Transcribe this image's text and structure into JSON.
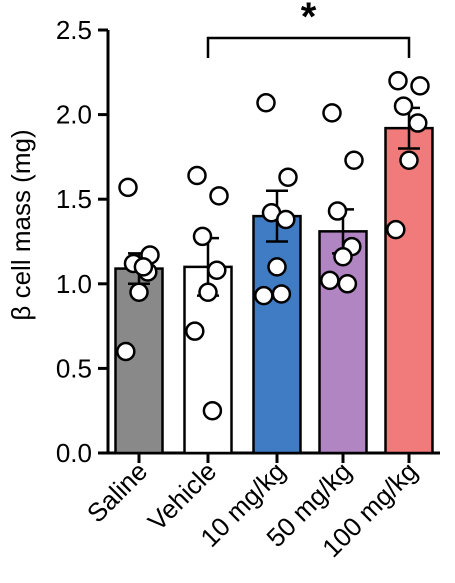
{
  "chart_data": {
    "type": "bar",
    "ylabel": "β cell mass (mg)",
    "ylim": [
      0,
      2.5
    ],
    "yticks": [
      "0.0",
      "0.5",
      "1.0",
      "1.5",
      "2.0",
      "2.5"
    ],
    "categories": [
      "Saline",
      "Vehicle",
      "10 mg/kg",
      "50 mg/kg",
      "100 mg/kg"
    ],
    "values": [
      1.09,
      1.1,
      1.4,
      1.31,
      1.92
    ],
    "sem": [
      0.09,
      0.17,
      0.15,
      0.13,
      0.12
    ],
    "colors": [
      "#898989",
      "#ffffff",
      "#3f7cc4",
      "#b184c2",
      "#f07b7a"
    ],
    "points": [
      [
        1.57,
        1.17,
        1.12,
        1.07,
        0.95,
        0.6,
        1.1
      ],
      [
        1.64,
        1.52,
        1.28,
        1.08,
        0.95,
        0.72,
        0.25
      ],
      [
        2.07,
        1.63,
        1.42,
        1.38,
        1.1,
        0.93,
        0.94
      ],
      [
        2.01,
        1.73,
        1.43,
        1.22,
        1.16,
        1.02,
        1.0
      ],
      [
        2.2,
        2.17,
        2.05,
        1.95,
        1.73,
        1.32
      ]
    ],
    "significance": {
      "from": 1,
      "to": 4,
      "label": "*"
    }
  }
}
